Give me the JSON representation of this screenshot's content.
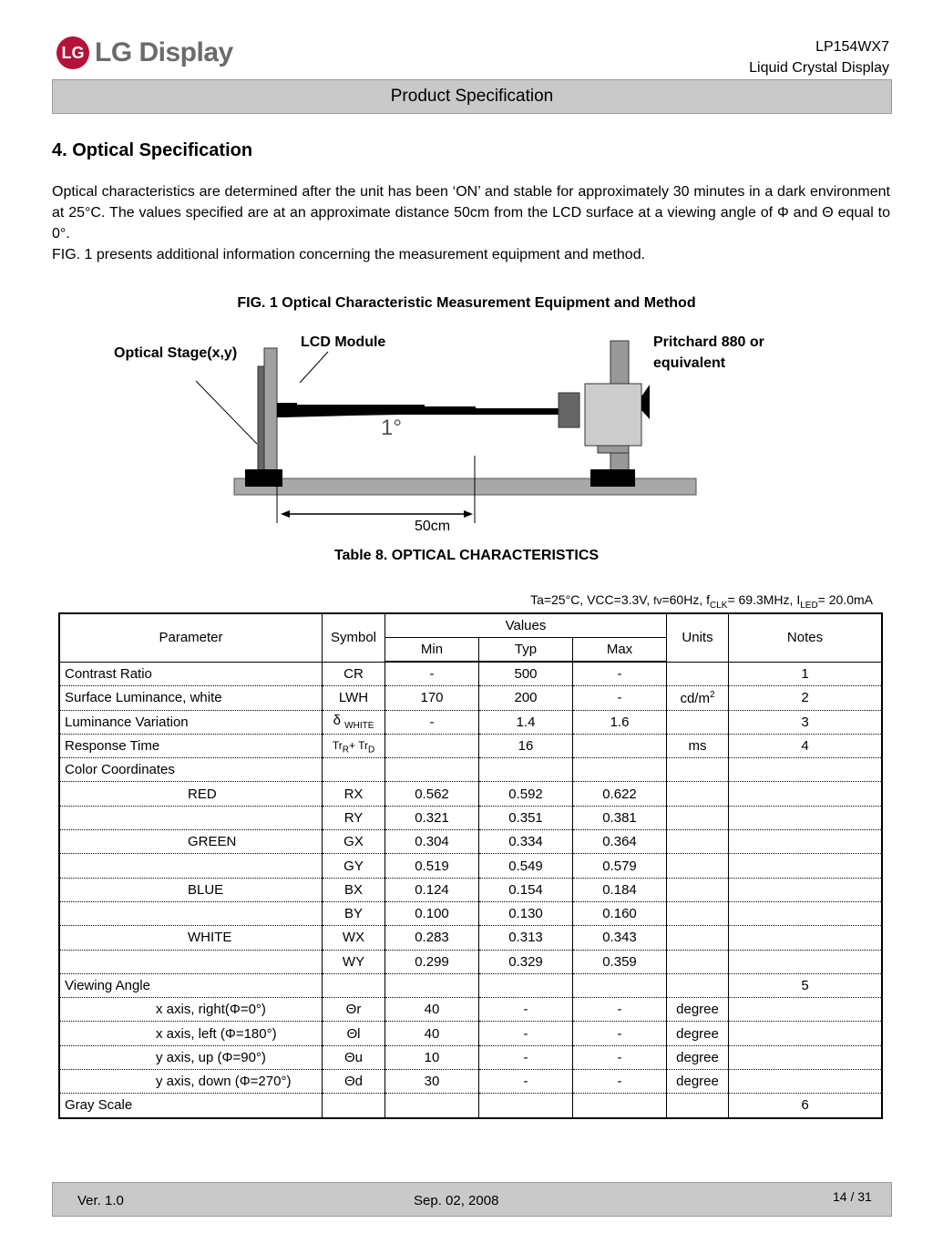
{
  "header": {
    "logo_text": "LG Display",
    "logo_mark": "LG",
    "model": "LP154WX7",
    "product": "Liquid Crystal Display",
    "bar_title": "Product Specification"
  },
  "section": {
    "title": "4. Optical Specification",
    "paragraph1": "Optical characteristics are determined after the unit has been ‘ON’ and stable for approximately 30 minutes in a dark environment at 25°C. The values specified are at an approximate distance 50cm from the LCD surface at a viewing angle of Φ and Θ equal to 0°.",
    "paragraph2": "FIG. 1 presents additional information concerning the measurement equipment and method."
  },
  "figure": {
    "caption": "FIG. 1 Optical Characteristic Measurement Equipment and Method",
    "stage_label": "Optical Stage(x,y)",
    "lcd_label": "LCD Module",
    "meter_label_1": "Pritchard 880 or",
    "meter_label_2": "equivalent",
    "angle_label": "1°",
    "distance_label": "50cm"
  },
  "table": {
    "caption": "Table 8.  OPTICAL CHARACTERISTICS",
    "conditions": "Ta=25°C, VCC=3.3V, fv=60Hz, fCLK= 69.3MHz, ILED= 20.0mA",
    "headers": {
      "parameter": "Parameter",
      "symbol": "Symbol",
      "values": "Values",
      "min": "Min",
      "typ": "Typ",
      "max": "Max",
      "units": "Units",
      "notes": "Notes"
    },
    "rows": [
      {
        "param": "Contrast Ratio",
        "symbol": "CR",
        "min": "-",
        "typ": "500",
        "max": "-",
        "units": "",
        "notes": "1"
      },
      {
        "param": "Surface Luminance, white",
        "symbol": "LWH",
        "min": "170",
        "typ": "200",
        "max": "-",
        "units": "cd/m2",
        "notes": "2"
      },
      {
        "param": "Luminance Variation",
        "symbol": "δ WHITE",
        "min": "-",
        "typ": "1.4",
        "max": "1.6",
        "units": "",
        "notes": "3"
      },
      {
        "param": "Response Time",
        "symbol": "TrR+ TrD",
        "min": "",
        "typ": "16",
        "max": "",
        "units": "ms",
        "notes": "4"
      },
      {
        "param": "Color Coordinates",
        "symbol": "",
        "min": "",
        "typ": "",
        "max": "",
        "units": "",
        "notes": ""
      },
      {
        "param": "RED",
        "symbol": "RX",
        "min": "0.562",
        "typ": "0.592",
        "max": "0.622",
        "units": "",
        "notes": ""
      },
      {
        "param": "",
        "symbol": "RY",
        "min": "0.321",
        "typ": "0.351",
        "max": "0.381",
        "units": "",
        "notes": ""
      },
      {
        "param": "GREEN",
        "symbol": "GX",
        "min": "0.304",
        "typ": "0.334",
        "max": "0.364",
        "units": "",
        "notes": ""
      },
      {
        "param": "",
        "symbol": "GY",
        "min": "0.519",
        "typ": "0.549",
        "max": "0.579",
        "units": "",
        "notes": ""
      },
      {
        "param": "BLUE",
        "symbol": "BX",
        "min": "0.124",
        "typ": "0.154",
        "max": "0.184",
        "units": "",
        "notes": ""
      },
      {
        "param": "",
        "symbol": "BY",
        "min": "0.100",
        "typ": "0.130",
        "max": "0.160",
        "units": "",
        "notes": ""
      },
      {
        "param": "WHITE",
        "symbol": "WX",
        "min": "0.283",
        "typ": "0.313",
        "max": "0.343",
        "units": "",
        "notes": ""
      },
      {
        "param": "",
        "symbol": "WY",
        "min": "0.299",
        "typ": "0.329",
        "max": "0.359",
        "units": "",
        "notes": ""
      },
      {
        "param": "Viewing Angle",
        "symbol": "",
        "min": "",
        "typ": "",
        "max": "",
        "units": "",
        "notes": "5"
      },
      {
        "param": "x axis, right(Φ=0°)",
        "symbol": "Θr",
        "min": "40",
        "typ": "-",
        "max": "-",
        "units": "degree",
        "notes": ""
      },
      {
        "param": "x axis, left (Φ=180°)",
        "symbol": "Θl",
        "min": "40",
        "typ": "-",
        "max": "-",
        "units": "degree",
        "notes": ""
      },
      {
        "param": "y axis, up (Φ=90°)",
        "symbol": "Θu",
        "min": "10",
        "typ": "-",
        "max": "-",
        "units": "degree",
        "notes": ""
      },
      {
        "param": "y axis, down (Φ=270°)",
        "symbol": "Θd",
        "min": "30",
        "typ": "-",
        "max": "-",
        "units": "degree",
        "notes": ""
      },
      {
        "param": "Gray Scale",
        "symbol": "",
        "min": "",
        "typ": "",
        "max": "",
        "units": "",
        "notes": "6"
      }
    ]
  },
  "footer": {
    "version": "Ver. 1.0",
    "date": "Sep. 02, 2008",
    "page": "14 / 31"
  }
}
